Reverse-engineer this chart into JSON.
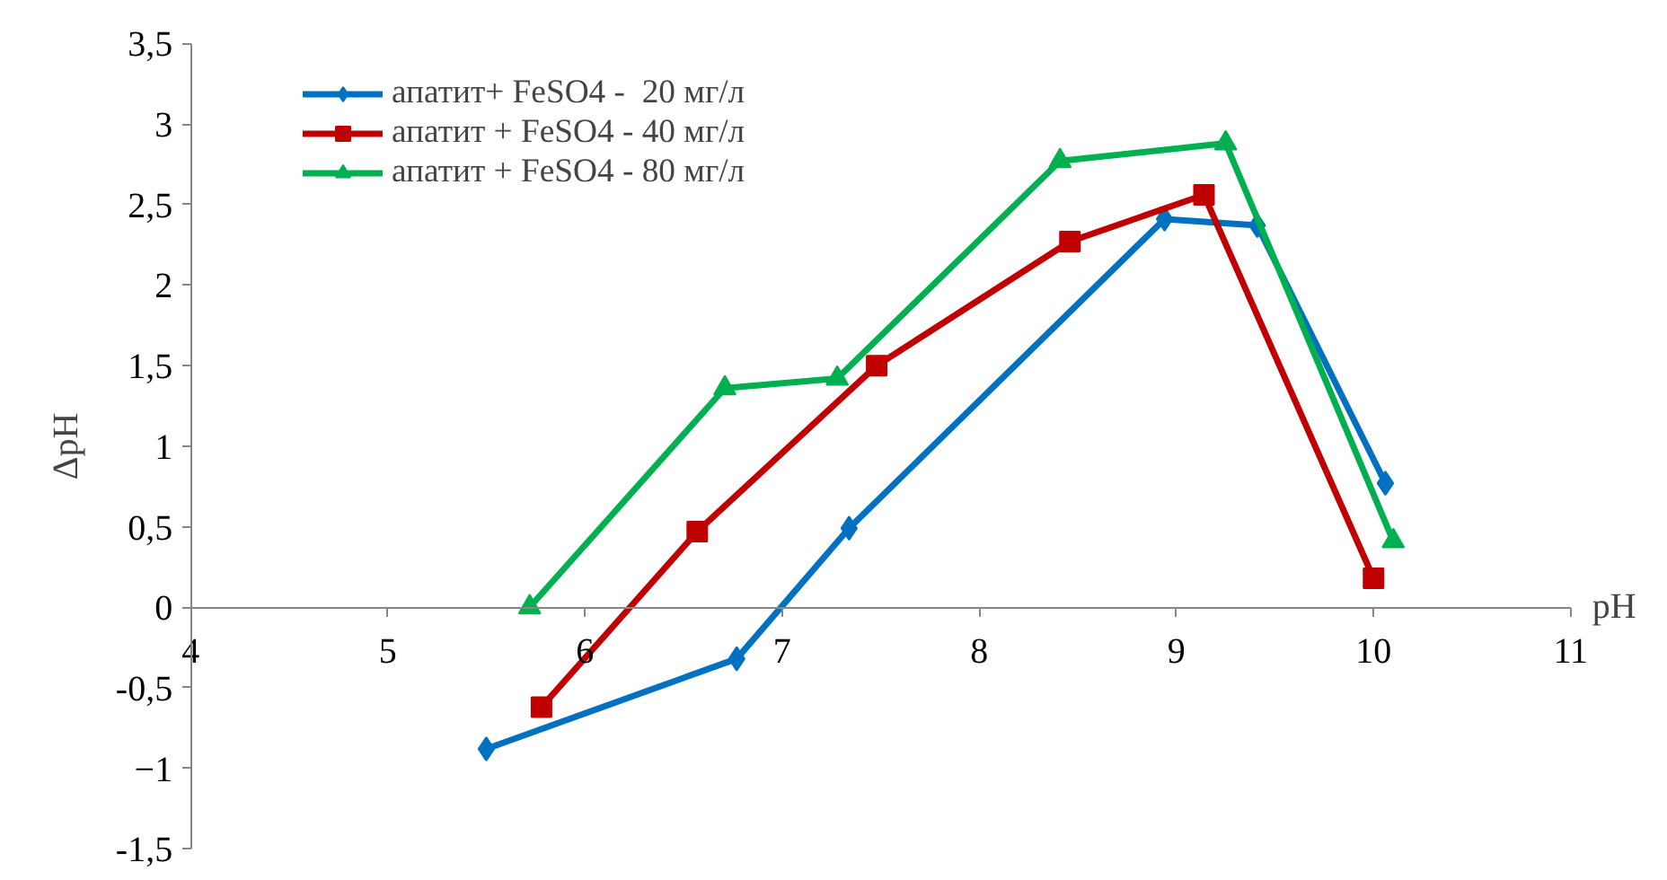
{
  "chart_data": {
    "type": "line",
    "xlabel": "pH",
    "ylabel": "ΔpH",
    "xlim": [
      4,
      11
    ],
    "ylim": [
      -1.5,
      3.5
    ],
    "xticks": [
      4,
      5,
      6,
      7,
      8,
      9,
      10,
      11
    ],
    "yticks": [
      {
        "value": -1.5,
        "label": "-1,5"
      },
      -1,
      {
        "value": -0.5,
        "label": "-0,5"
      },
      0,
      {
        "value": 0.5,
        "label": "0,5"
      },
      1,
      {
        "value": 1.5,
        "label": "1,5"
      },
      2,
      {
        "value": 2.5,
        "label": "2,5"
      },
      3,
      {
        "value": 3.5,
        "label": "3,5"
      }
    ],
    "grid": false,
    "legend": "top left",
    "series": [
      {
        "name": "апатит+ FeSO4 -  20 мг/л",
        "color": "#0070c0",
        "marker": "diamond",
        "x": [
          5.5,
          6.77,
          7.34,
          8.94,
          9.41,
          10.06
        ],
        "values": [
          -0.88,
          -0.32,
          0.49,
          2.41,
          2.37,
          0.77
        ]
      },
      {
        "name": "апатит + FeSO4 - 40 мг/л",
        "color": "#c00000",
        "marker": "square",
        "x": [
          5.78,
          6.57,
          7.48,
          8.46,
          9.14,
          10.0
        ],
        "values": [
          -0.62,
          0.47,
          1.5,
          2.27,
          2.56,
          0.18
        ]
      },
      {
        "name": "апатит + FeSO4 - 80 мг/л",
        "color": "#00b050",
        "marker": "triangle",
        "x": [
          5.72,
          6.71,
          7.28,
          8.41,
          9.25,
          10.1
        ],
        "values": [
          0.0,
          1.36,
          1.42,
          2.77,
          2.88,
          0.41
        ]
      }
    ]
  }
}
